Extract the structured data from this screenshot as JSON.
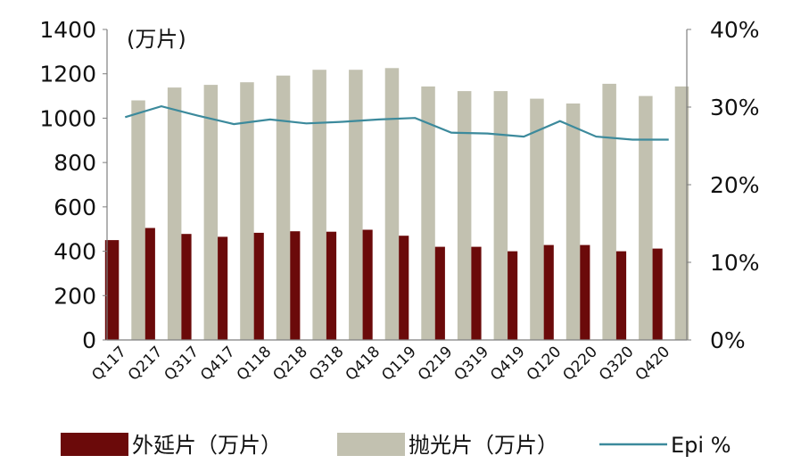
{
  "chart_data": {
    "type": "bar",
    "categories": [
      "Q117",
      "Q217",
      "Q317",
      "Q417",
      "Q118",
      "Q218",
      "Q318",
      "Q418",
      "Q119",
      "Q219",
      "Q319",
      "Q419",
      "Q120",
      "Q220",
      "Q320",
      "Q420"
    ],
    "unit_label": "(万片)",
    "left_axis": {
      "min": 0,
      "max": 1400,
      "ticks": [
        "0",
        "200",
        "400",
        "600",
        "800",
        "1000",
        "1200",
        "1400"
      ]
    },
    "right_axis": {
      "min": 0,
      "max": 0.4,
      "ticks": [
        "0%",
        "10%",
        "20%",
        "30%",
        "40%"
      ]
    },
    "series": [
      {
        "name": "外延片（万片）",
        "type": "bar",
        "axis": "left",
        "color": "#6b0a0a",
        "values": [
          450,
          505,
          478,
          465,
          483,
          490,
          488,
          497,
          470,
          420,
          420,
          400,
          428,
          428,
          400,
          412
        ]
      },
      {
        "name": "抛光片（万片）",
        "type": "bar",
        "axis": "left",
        "color": "#c2c1b0",
        "values": [
          1080,
          1138,
          1150,
          1162,
          1192,
          1218,
          1218,
          1226,
          1143,
          1122,
          1122,
          1088,
          1066,
          1155,
          1100,
          1143
        ]
      },
      {
        "name": "Epi %",
        "type": "line",
        "axis": "right",
        "color": "#3c8a9c",
        "values": [
          0.287,
          0.301,
          0.289,
          0.278,
          0.284,
          0.279,
          0.281,
          0.284,
          0.286,
          0.267,
          0.266,
          0.262,
          0.282,
          0.262,
          0.258,
          0.258
        ]
      }
    ],
    "legend": {
      "position": "bottom",
      "items": [
        {
          "label": "外延片（万片）",
          "swatch": "bar",
          "color": "#6b0a0a"
        },
        {
          "label": "抛光片（万片）",
          "swatch": "bar",
          "color": "#c2c1b0"
        },
        {
          "label": "Epi %",
          "swatch": "line",
          "color": "#3c8a9c"
        }
      ]
    },
    "grid": false
  }
}
